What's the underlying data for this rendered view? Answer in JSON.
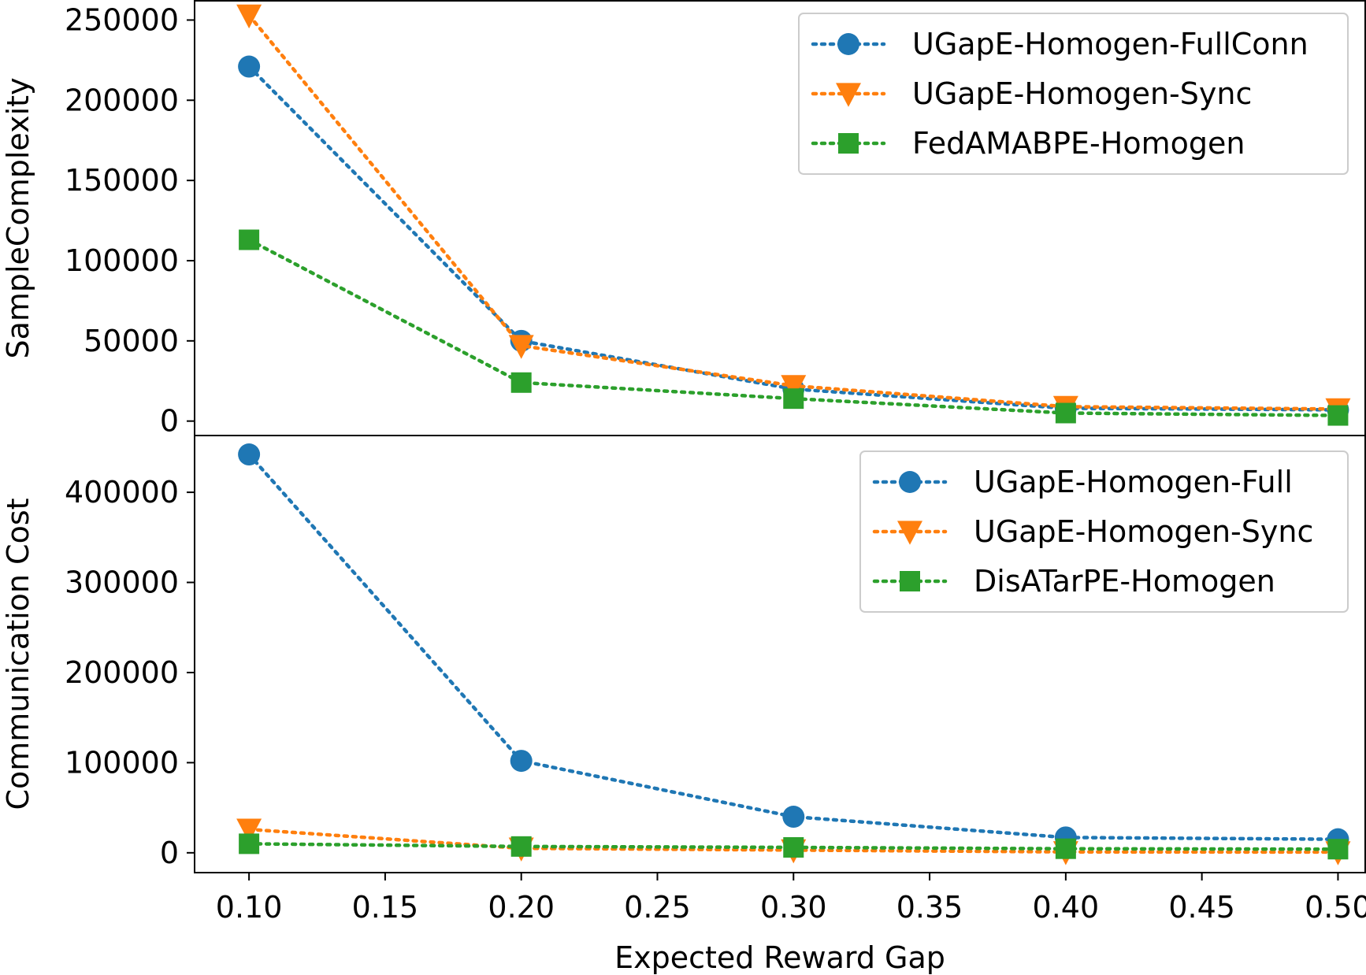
{
  "chart_data": [
    {
      "type": "line",
      "title": "",
      "xlabel": "",
      "ylabel": "SampleComplexity",
      "x": [
        0.1,
        0.2,
        0.3,
        0.4,
        0.5
      ],
      "xlim": [
        0.08,
        0.51
      ],
      "ylim": [
        -9000,
        262000
      ],
      "yticks": [
        0,
        50000,
        100000,
        150000,
        200000,
        250000
      ],
      "grid": false,
      "legend_position": "top-right",
      "series": [
        {
          "name": "UGapE-Homogen-FullConn",
          "marker": "circle",
          "color": "#1f77b4",
          "values": [
            221000,
            50000,
            20000,
            8000,
            7000
          ]
        },
        {
          "name": "UGapE-Homogen-Sync",
          "marker": "triangle-down",
          "color": "#ff7f0e",
          "values": [
            253000,
            47000,
            22000,
            9000,
            7500
          ]
        },
        {
          "name": "FedAMABPE-Homogen",
          "marker": "square",
          "color": "#2ca02c",
          "values": [
            113000,
            24000,
            14000,
            5000,
            3500
          ]
        }
      ]
    },
    {
      "type": "line",
      "title": "",
      "xlabel": "Expected Reward Gap",
      "ylabel": "Communication Cost",
      "x": [
        0.1,
        0.2,
        0.3,
        0.4,
        0.5
      ],
      "xlim": [
        0.08,
        0.51
      ],
      "xticks": [
        0.1,
        0.15,
        0.2,
        0.25,
        0.3,
        0.35,
        0.4,
        0.45,
        0.5
      ],
      "xtick_labels": [
        "0.10",
        "0.15",
        "0.20",
        "0.25",
        "0.30",
        "0.35",
        "0.40",
        "0.45",
        "0.50"
      ],
      "ylim": [
        -22000,
        463000
      ],
      "yticks": [
        0,
        100000,
        200000,
        300000,
        400000
      ],
      "grid": false,
      "legend_position": "top-right",
      "series": [
        {
          "name": "UGapE-Homogen-Full",
          "marker": "circle",
          "color": "#1f77b4",
          "values": [
            442000,
            102000,
            40000,
            17000,
            15000
          ]
        },
        {
          "name": "UGapE-Homogen-Sync",
          "marker": "triangle-down",
          "color": "#ff7f0e",
          "values": [
            26000,
            5000,
            3000,
            1000,
            800
          ]
        },
        {
          "name": "DisATarPE-Homogen",
          "marker": "square",
          "color": "#2ca02c",
          "values": [
            10000,
            7000,
            6000,
            4500,
            4000
          ]
        }
      ]
    }
  ]
}
